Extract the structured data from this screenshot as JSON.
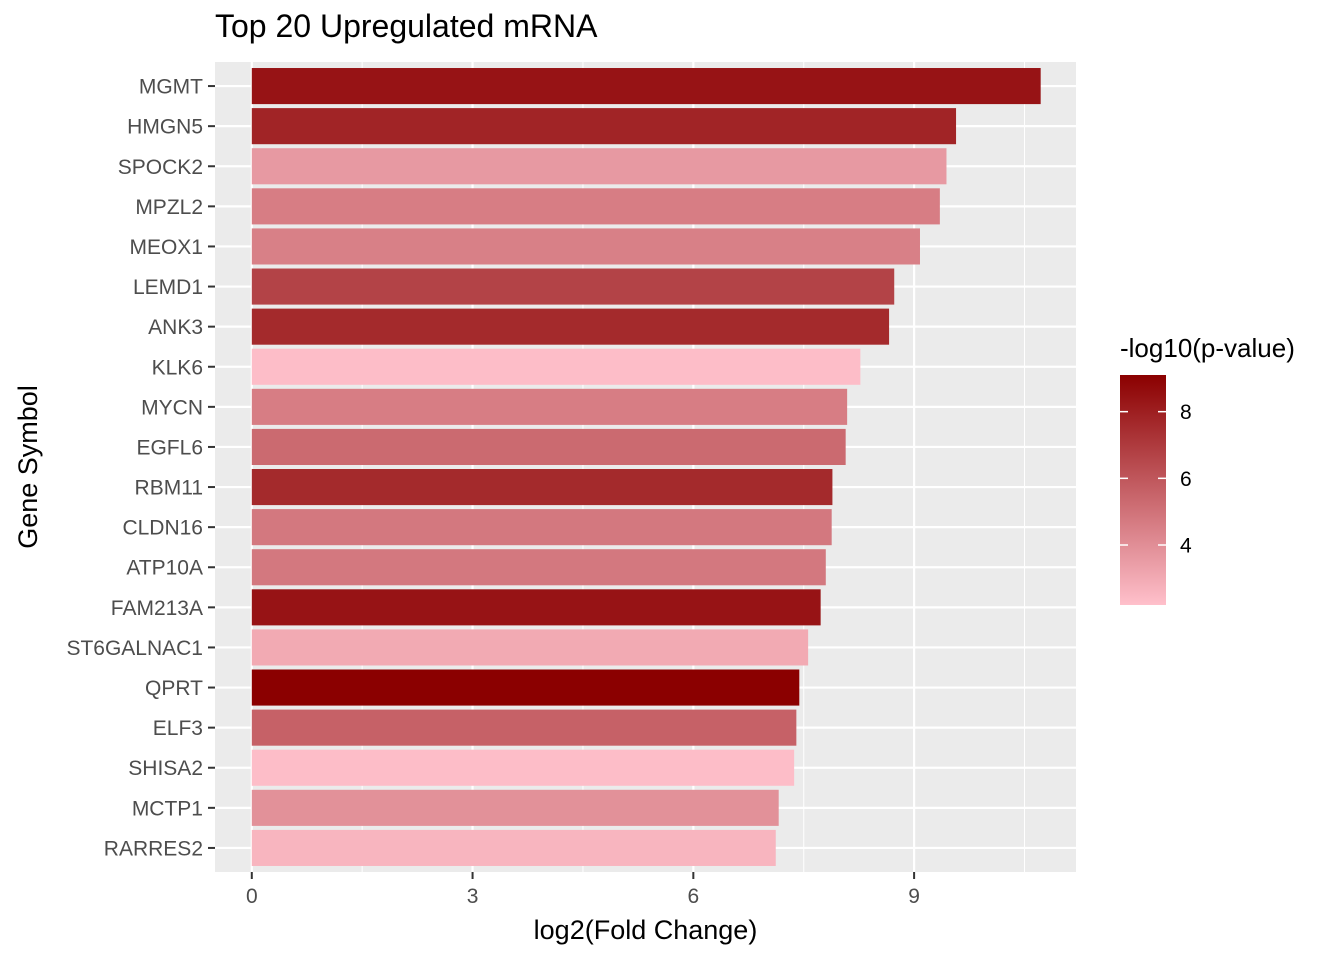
{
  "chart_data": {
    "type": "bar",
    "orientation": "horizontal",
    "title": "Top 20 Upregulated mRNA",
    "xlabel": "log2(Fold Change)",
    "ylabel": "Gene Symbol",
    "xlim": [
      -0.5,
      11.2
    ],
    "xticks": [
      0,
      3,
      6,
      9
    ],
    "grid": true,
    "legend": {
      "title": "-log10(p-value)",
      "placement": "right",
      "range": [
        2.2,
        9.1
      ],
      "ticks": [
        4,
        6,
        8
      ],
      "low_color": "#FFC0CB",
      "high_color": "#8B0000"
    },
    "categories": [
      "MGMT",
      "HMGN5",
      "SPOCK2",
      "MPZL2",
      "MEOX1",
      "LEMD1",
      "ANK3",
      "KLK6",
      "MYCN",
      "EGFL6",
      "RBM11",
      "CLDN16",
      "ATP10A",
      "FAM213A",
      "ST6GALNAC1",
      "QPRT",
      "ELF3",
      "SHISA2",
      "MCTP1",
      "RARRES2"
    ],
    "values": [
      10.72,
      9.57,
      9.44,
      9.35,
      9.08,
      8.73,
      8.66,
      8.27,
      8.09,
      8.07,
      7.89,
      7.88,
      7.8,
      7.73,
      7.56,
      7.44,
      7.4,
      7.37,
      7.16,
      7.12
    ],
    "color_values": [
      8.4,
      7.8,
      3.6,
      4.6,
      4.5,
      6.7,
      7.6,
      2.3,
      4.6,
      5.3,
      7.6,
      4.8,
      4.8,
      8.4,
      3.0,
      9.1,
      5.6,
      2.3,
      3.9,
      2.6
    ]
  }
}
